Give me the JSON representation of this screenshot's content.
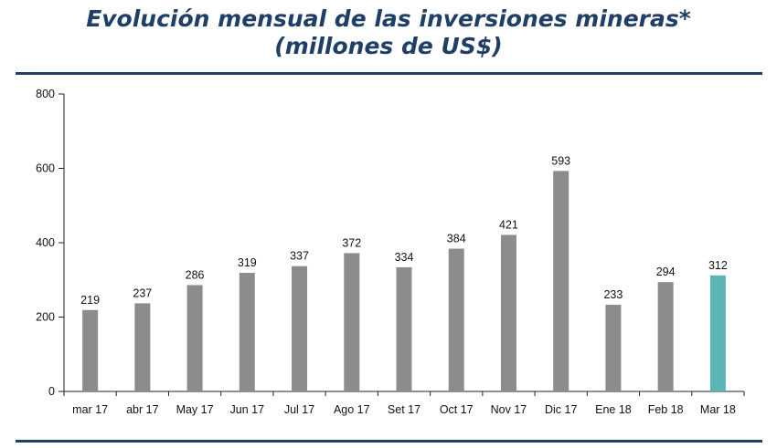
{
  "title": {
    "line1": "Evolución mensual de las inversiones mineras*",
    "line2": "(millones de US$)"
  },
  "colors": {
    "title": "#1f3f66",
    "bar_default": "#8c8c8c",
    "bar_highlight": "#5bb5b5",
    "axis": "#222222"
  },
  "chart_data": {
    "type": "bar",
    "categories": [
      "mar 17",
      "abr 17",
      "May 17",
      "Jun 17",
      "Jul 17",
      "Ago 17",
      "Set 17",
      "Oct 17",
      "Nov 17",
      "Dic 17",
      "Ene 18",
      "Feb 18",
      "Mar 18"
    ],
    "values": [
      219,
      237,
      286,
      319,
      337,
      372,
      334,
      384,
      421,
      593,
      233,
      294,
      312
    ],
    "highlight_category": "Mar 18",
    "ylim": [
      0,
      800
    ],
    "yticks": [
      0,
      200,
      400,
      600,
      800
    ],
    "xlabel": "",
    "ylabel": "",
    "grid": false,
    "legend": "none",
    "data_labels": true
  }
}
